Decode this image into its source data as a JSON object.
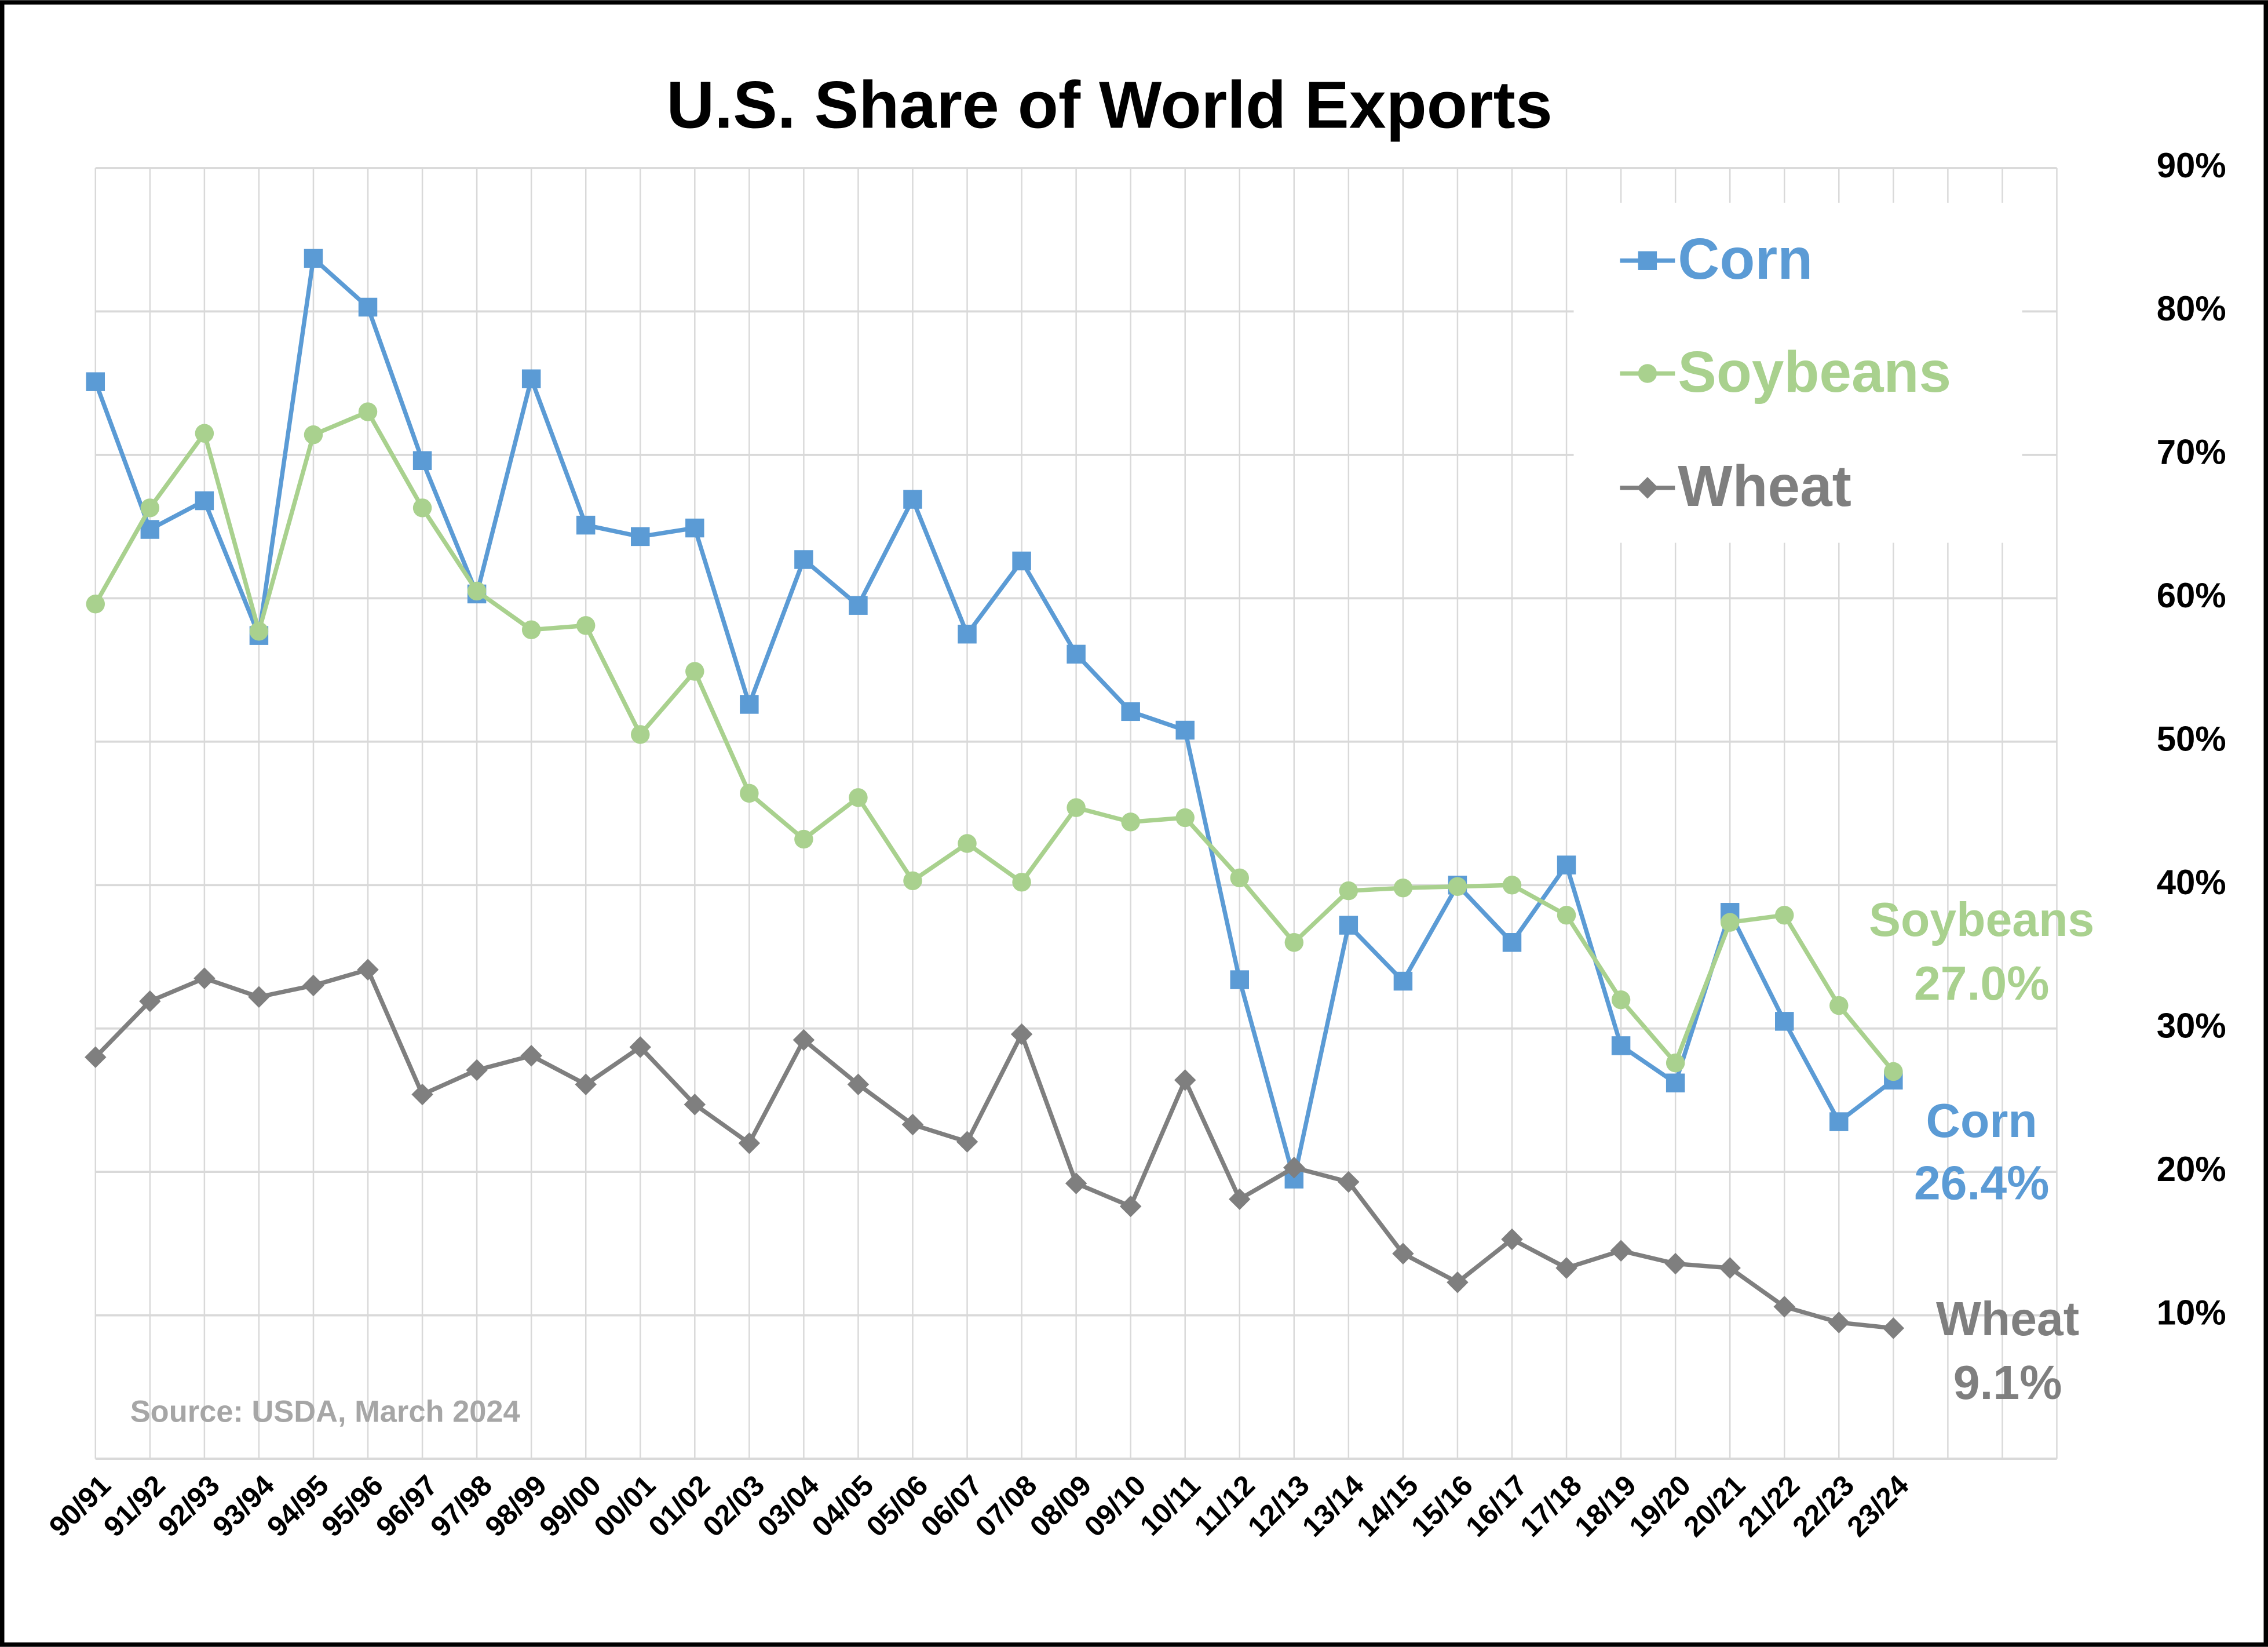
{
  "chart_data": {
    "type": "line",
    "title": "U.S. Share of World Exports",
    "source": "Source: USDA, March 2024",
    "categories": [
      "90/91",
      "91/92",
      "92/93",
      "93/94",
      "94/95",
      "95/96",
      "96/97",
      "97/98",
      "98/99",
      "99/00",
      "00/01",
      "01/02",
      "02/03",
      "03/04",
      "04/05",
      "05/06",
      "06/07",
      "07/08",
      "08/09",
      "09/10",
      "10/11",
      "11/12",
      "12/13",
      "13/14",
      "14/15",
      "15/16",
      "16/17",
      "17/18",
      "18/19",
      "19/20",
      "20/21",
      "21/22",
      "22/23",
      "23/24",
      null,
      null,
      null
    ],
    "ylim": [
      0,
      90
    ],
    "yticks": [
      {
        "value": 10,
        "label": "10%"
      },
      {
        "value": 20,
        "label": "20%"
      },
      {
        "value": 30,
        "label": "30%"
      },
      {
        "value": 40,
        "label": "40%"
      },
      {
        "value": 50,
        "label": "50%"
      },
      {
        "value": 60,
        "label": "60%"
      },
      {
        "value": 70,
        "label": "70%"
      },
      {
        "value": 80,
        "label": "80%"
      },
      {
        "value": 90,
        "label": "90%"
      }
    ],
    "y_axis_side": "right",
    "grid": true,
    "legend": "upper right",
    "series": [
      {
        "name": "Corn",
        "color": "#5b9bd5",
        "marker": "square",
        "values": [
          75.1,
          64.8,
          66.8,
          57.4,
          83.7,
          80.3,
          69.6,
          60.3,
          75.3,
          65.1,
          64.3,
          64.9,
          52.6,
          62.7,
          59.5,
          66.9,
          57.5,
          62.6,
          56.1,
          52.1,
          50.8,
          33.4,
          19.5,
          37.2,
          33.3,
          40.0,
          36.0,
          41.4,
          28.8,
          26.2,
          38.1,
          30.5,
          23.5,
          26.4,
          null,
          null,
          null
        ],
        "value_labels": [
          null,
          null,
          null,
          null,
          null,
          null,
          null,
          null,
          null,
          null,
          null,
          null,
          null,
          null,
          null,
          null,
          null,
          null,
          null,
          null,
          null,
          null,
          null,
          null,
          null,
          null,
          null,
          null,
          null,
          null,
          null,
          null,
          null,
          "26.4%",
          null,
          null,
          null
        ]
      },
      {
        "name": "Soybeans",
        "color": "#a9d18e",
        "marker": "circle",
        "values": [
          59.6,
          66.3,
          71.5,
          57.7,
          71.4,
          73.0,
          66.3,
          60.5,
          57.8,
          58.1,
          50.5,
          54.9,
          46.4,
          43.2,
          46.1,
          40.3,
          42.9,
          40.2,
          45.4,
          44.4,
          44.7,
          40.5,
          36.0,
          39.6,
          39.8,
          39.9,
          40.0,
          37.9,
          32.0,
          27.6,
          37.4,
          37.9,
          31.6,
          27.0,
          null,
          null,
          null
        ],
        "value_labels": [
          null,
          null,
          null,
          null,
          null,
          null,
          null,
          null,
          null,
          null,
          null,
          null,
          null,
          null,
          null,
          null,
          null,
          null,
          null,
          null,
          null,
          null,
          null,
          null,
          null,
          null,
          null,
          null,
          null,
          null,
          null,
          null,
          null,
          "27.0%",
          null,
          null,
          null
        ]
      },
      {
        "name": "Wheat",
        "color": "#7f7f7f",
        "marker": "diamond",
        "values": [
          28.0,
          31.9,
          33.5,
          32.2,
          33.0,
          34.1,
          25.4,
          27.1,
          28.1,
          26.1,
          28.7,
          24.7,
          22.0,
          29.2,
          26.1,
          23.3,
          22.1,
          29.6,
          19.2,
          17.6,
          26.4,
          18.1,
          20.3,
          19.3,
          14.3,
          12.3,
          15.3,
          13.3,
          14.5,
          13.6,
          13.3,
          10.6,
          9.5,
          9.1,
          null,
          null,
          null
        ],
        "value_labels": [
          null,
          null,
          null,
          null,
          null,
          null,
          null,
          null,
          null,
          null,
          null,
          null,
          null,
          null,
          null,
          null,
          null,
          null,
          null,
          null,
          null,
          null,
          null,
          null,
          null,
          null,
          null,
          null,
          null,
          null,
          null,
          null,
          null,
          "9.1%",
          null,
          null,
          null
        ]
      }
    ]
  }
}
